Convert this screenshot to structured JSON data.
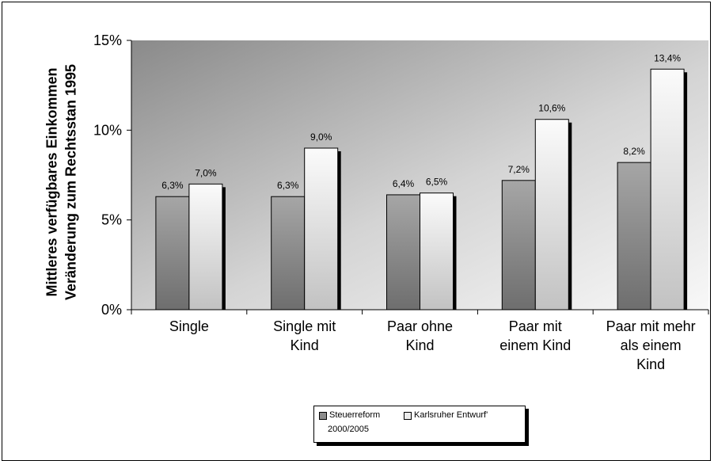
{
  "chart_data": {
    "type": "bar",
    "ylabel_line1": "Mittleres verfügbares Einkommen",
    "ylabel_line2": "Veränderung zum Rechtsstan 1995",
    "ylim": [
      0,
      15
    ],
    "yticks": [
      "0%",
      "5%",
      "10%",
      "15%"
    ],
    "ytick_values": [
      0,
      5,
      10,
      15
    ],
    "categories": [
      "Single",
      "Single mit\nKind",
      "Paar ohne\nKind",
      "Paar mit\neinem Kind",
      "Paar mit mehr\nals einem\nKind"
    ],
    "series": [
      {
        "name": "Steuerreform 2000/2005",
        "values": [
          6.3,
          6.3,
          6.4,
          7.2,
          8.2
        ],
        "labels": [
          "6,3%",
          "6,3%",
          "6,4%",
          "7,2%",
          "8,2%"
        ],
        "color": "#8c8c8c"
      },
      {
        "name": "Karlsruher Entwurf'",
        "values": [
          7.0,
          9.0,
          6.5,
          10.6,
          13.4
        ],
        "labels": [
          "7,0%",
          "9,0%",
          "6,5%",
          "10,6%",
          "13,4%"
        ],
        "color": "#e6e6e6"
      }
    ],
    "grid": false,
    "legend_position": "bottom"
  },
  "legend": {
    "item1_line1": "Steuerreform",
    "item1_line2": "2000/2005",
    "item2": "Karlsruher Entwurf'"
  }
}
